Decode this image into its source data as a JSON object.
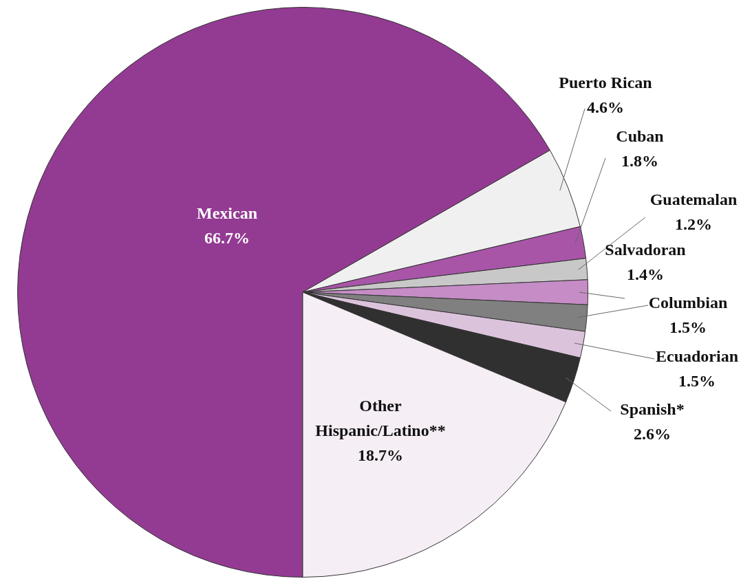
{
  "chart_data": {
    "type": "pie",
    "categories": [
      "Mexican",
      "Puerto Rican",
      "Cuban",
      "Guatemalan",
      "Salvadoran",
      "Columbian",
      "Ecuadorian",
      "Spanish*",
      "Other Hispanic/Latino**"
    ],
    "values": [
      66.7,
      4.6,
      1.8,
      1.2,
      1.4,
      1.5,
      1.5,
      2.6,
      18.7
    ],
    "value_labels": [
      "66.7%",
      "4.6%",
      "1.8%",
      "1.2%",
      "1.4%",
      "1.5%",
      "1.5%",
      "2.6%",
      "18.7%"
    ],
    "colors": [
      "#933b92",
      "#f0f0f0",
      "#a855a8",
      "#c8c8c8",
      "#c58cc5",
      "#808080",
      "#dcc3dc",
      "#303030",
      "#f5eef5"
    ],
    "legend": false
  }
}
